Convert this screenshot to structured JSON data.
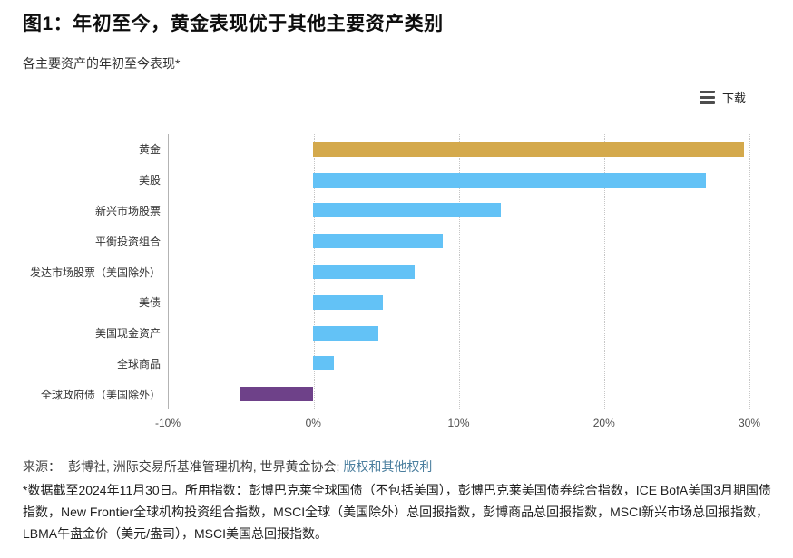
{
  "header": {
    "figure_title": "图1：年初至今，黄金表现优于其他主要资产类别",
    "subtitle": "各主要资产的年初至今表现*"
  },
  "toolbar": {
    "download_label": "下载",
    "download_icon": "hamburger-menu-icon"
  },
  "chart_data": {
    "type": "bar",
    "orientation": "horizontal",
    "title": "各主要资产的年初至今表现*",
    "categories": [
      "黄金",
      "美股",
      "新兴市场股票",
      "平衡投资组合",
      "发达市场股票（美国除外）",
      "美债",
      "美国现金资产",
      "全球商品",
      "全球政府债（美国除外）"
    ],
    "values": [
      29.6,
      27.0,
      12.9,
      8.9,
      7.0,
      4.8,
      4.5,
      1.4,
      -5.0
    ],
    "unit": "%",
    "bar_colors": [
      "#d4a94c",
      "#63c2f6",
      "#63c2f6",
      "#63c2f6",
      "#63c2f6",
      "#63c2f6",
      "#63c2f6",
      "#63c2f6",
      "#6e4189"
    ],
    "xlim": [
      -10,
      30
    ],
    "x_ticks": {
      "labels": [
        "-10%",
        "0%",
        "10%",
        "20%",
        "30%"
      ],
      "values": [
        -10,
        0,
        10,
        20,
        30
      ]
    },
    "grid": "vertical-dotted",
    "legend": "none",
    "xlabel": "",
    "ylabel": ""
  },
  "footer": {
    "source_label": "来源：",
    "source_text": "彭博社, 洲际交易所基准管理机构, 世界黄金协会;",
    "source_link": "版权和其他权利",
    "footnote": "*数据截至2024年11月30日。所用指数：彭博巴克莱全球国债（不包括美国），彭博巴克莱美国债券综合指数，ICE BofA美国3月期国债指数，New Frontier全球机构投资组合指数，MSCI全球（美国除外）总回报指数，彭博商品总回报指数，MSCI新兴市场总回报指数，LBMA午盘金价（美元/盎司），MSCI美国总回报指数。"
  },
  "colors": {
    "gold": "#d4a94c",
    "blue": "#63c2f6",
    "purple": "#6e4189",
    "link": "#4a7e9e",
    "axis": "#b3b3b3",
    "gridline": "#c6c6c6"
  }
}
